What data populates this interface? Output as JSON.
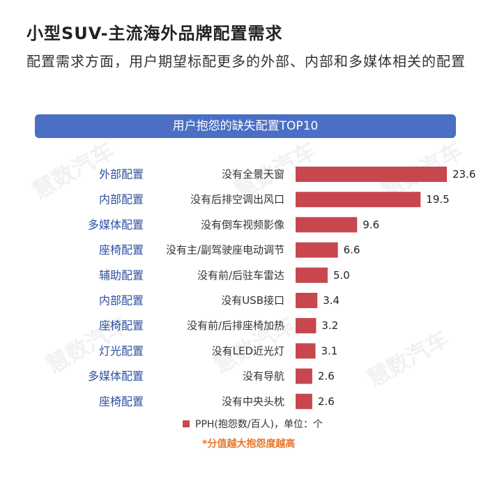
{
  "title": "小型SUV-主流海外品牌配置需求",
  "subtitle": "配置需求方面，用户期望标配更多的外部、内部和多媒体相关的配置",
  "banner": "用户抱怨的缺失配置TOP10",
  "legend_label": "PPH(抱怨数/百人)，单位：个",
  "note": "*分值越大抱怨度越高",
  "watermark": "慧数汽车",
  "colors": {
    "bar": "#c8474e",
    "category_text": "#2f4fa0",
    "banner": "#4a6fc4",
    "note": "#e8742a"
  },
  "chart_data": {
    "type": "bar",
    "orientation": "horizontal",
    "categories": [
      "外部配置",
      "内部配置",
      "多媒体配置",
      "座椅配置",
      "辅助配置",
      "内部配置",
      "座椅配置",
      "灯光配置",
      "多媒体配置",
      "座椅配置"
    ],
    "labels": [
      "没有全景天窗",
      "没有后排空调出风口",
      "没有倒车视频影像",
      "没有主/副驾驶座电动调节",
      "没有前/后驻车雷达",
      "没有USB接口",
      "没有前/后排座椅加热",
      "没有LED近光灯",
      "没有导航",
      "没有中央头枕"
    ],
    "values": [
      23.6,
      19.5,
      9.6,
      6.6,
      5.0,
      3.4,
      3.2,
      3.1,
      2.6,
      2.6
    ],
    "value_labels": [
      "23.6",
      "19.5",
      "9.6",
      "6.6",
      "5.0",
      "3.4",
      "3.2",
      "3.1",
      "2.6",
      "2.6"
    ],
    "series": [
      {
        "name": "PPH(抱怨数/百人)，单位：个",
        "values": [
          23.6,
          19.5,
          9.6,
          6.6,
          5.0,
          3.4,
          3.2,
          3.1,
          2.6,
          2.6
        ]
      }
    ],
    "xlim": [
      0,
      23.6
    ],
    "grid": false,
    "legend": "bottom"
  }
}
